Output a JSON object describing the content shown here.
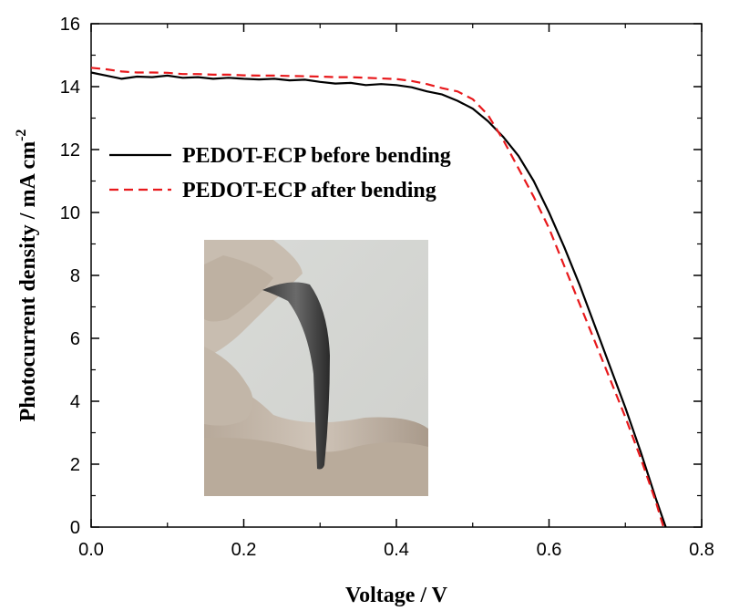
{
  "chart_data": {
    "type": "line",
    "xlabel": "Voltage / V",
    "ylabel": "Photocurrent density / mA cm",
    "ylabel_superscript": "-2",
    "xlim": [
      0.0,
      0.8
    ],
    "ylim": [
      0,
      16
    ],
    "x_ticks": [
      0.0,
      0.2,
      0.4,
      0.6,
      0.8
    ],
    "x_tick_labels": [
      "0.0",
      "0.2",
      "0.4",
      "0.6",
      "0.8"
    ],
    "y_ticks": [
      0,
      2,
      4,
      6,
      8,
      10,
      12,
      14,
      16
    ],
    "y_tick_labels": [
      "0",
      "2",
      "4",
      "6",
      "8",
      "10",
      "12",
      "14",
      "16"
    ],
    "grid": false,
    "legend_position": "top-left",
    "inset_image": "flexible PEDOT-ECP electrode bent between fingers",
    "series": [
      {
        "name": "PEDOT-ECP before bending",
        "color": "#000000",
        "style": "solid",
        "points": [
          [
            0.0,
            14.45
          ],
          [
            0.02,
            14.35
          ],
          [
            0.04,
            14.25
          ],
          [
            0.06,
            14.32
          ],
          [
            0.08,
            14.3
          ],
          [
            0.1,
            14.35
          ],
          [
            0.12,
            14.28
          ],
          [
            0.14,
            14.3
          ],
          [
            0.16,
            14.25
          ],
          [
            0.18,
            14.28
          ],
          [
            0.2,
            14.25
          ],
          [
            0.22,
            14.23
          ],
          [
            0.24,
            14.25
          ],
          [
            0.26,
            14.2
          ],
          [
            0.28,
            14.22
          ],
          [
            0.3,
            14.15
          ],
          [
            0.32,
            14.1
          ],
          [
            0.34,
            14.12
          ],
          [
            0.36,
            14.05
          ],
          [
            0.38,
            14.08
          ],
          [
            0.4,
            14.05
          ],
          [
            0.42,
            13.98
          ],
          [
            0.44,
            13.85
          ],
          [
            0.46,
            13.75
          ],
          [
            0.48,
            13.55
          ],
          [
            0.5,
            13.3
          ],
          [
            0.52,
            12.9
          ],
          [
            0.54,
            12.4
          ],
          [
            0.56,
            11.8
          ],
          [
            0.58,
            11.0
          ],
          [
            0.6,
            10.0
          ],
          [
            0.62,
            8.9
          ],
          [
            0.64,
            7.7
          ],
          [
            0.66,
            6.4
          ],
          [
            0.68,
            5.1
          ],
          [
            0.7,
            3.8
          ],
          [
            0.72,
            2.4
          ],
          [
            0.74,
            0.9
          ],
          [
            0.753,
            0.0
          ]
        ]
      },
      {
        "name": "PEDOT-ECP after bending",
        "color": "#e8191c",
        "style": "dashed",
        "points": [
          [
            0.0,
            14.6
          ],
          [
            0.02,
            14.55
          ],
          [
            0.04,
            14.48
          ],
          [
            0.06,
            14.45
          ],
          [
            0.08,
            14.45
          ],
          [
            0.1,
            14.44
          ],
          [
            0.12,
            14.4
          ],
          [
            0.14,
            14.4
          ],
          [
            0.16,
            14.38
          ],
          [
            0.18,
            14.38
          ],
          [
            0.2,
            14.36
          ],
          [
            0.22,
            14.35
          ],
          [
            0.24,
            14.35
          ],
          [
            0.26,
            14.34
          ],
          [
            0.28,
            14.33
          ],
          [
            0.3,
            14.32
          ],
          [
            0.32,
            14.3
          ],
          [
            0.34,
            14.3
          ],
          [
            0.36,
            14.28
          ],
          [
            0.38,
            14.26
          ],
          [
            0.4,
            14.24
          ],
          [
            0.42,
            14.18
          ],
          [
            0.44,
            14.08
          ],
          [
            0.46,
            13.95
          ],
          [
            0.48,
            13.85
          ],
          [
            0.5,
            13.6
          ],
          [
            0.52,
            13.1
          ],
          [
            0.54,
            12.3
          ],
          [
            0.56,
            11.4
          ],
          [
            0.58,
            10.5
          ],
          [
            0.6,
            9.5
          ],
          [
            0.62,
            8.3
          ],
          [
            0.64,
            7.1
          ],
          [
            0.66,
            5.9
          ],
          [
            0.68,
            4.7
          ],
          [
            0.7,
            3.5
          ],
          [
            0.72,
            2.2
          ],
          [
            0.74,
            0.8
          ],
          [
            0.75,
            0.0
          ]
        ]
      }
    ]
  }
}
